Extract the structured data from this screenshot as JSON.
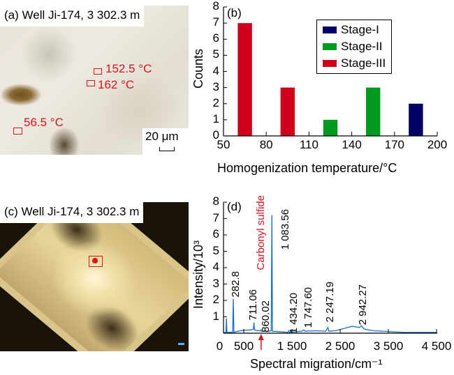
{
  "panel_a": {
    "label": "(a) Well Ji-174, 3 302.3 m",
    "temperatures": [
      "152.5 °C",
      "162 °C",
      "56.5 °C"
    ],
    "scale_bar": "20 μm"
  },
  "panel_c": {
    "label": "(c) Well Ji-174, 3 302.3 m"
  },
  "colors": {
    "stage1": "#000066",
    "stage2": "#009a1e",
    "stage3": "#d0001a",
    "spectrum": "#1a6fcc",
    "annotation": "#d8141e"
  },
  "chart_data": [
    {
      "panel": "(b)",
      "type": "bar",
      "xlabel": "Homogenization temperature/°C",
      "ylabel": "Counts",
      "xlim": [
        50,
        200
      ],
      "ylim": [
        0,
        8
      ],
      "xticks": [
        "50",
        "80",
        "110",
        "140",
        "170",
        "200"
      ],
      "yticks": [
        "0",
        "1",
        "2",
        "3",
        "4",
        "5",
        "6",
        "7",
        "8"
      ],
      "legend_position": "top-right",
      "legend": [
        "Stage-I",
        "Stage-II",
        "Stage-III"
      ],
      "bars": [
        {
          "from": 60,
          "to": 70,
          "value": 7,
          "series": "Stage-III"
        },
        {
          "from": 90,
          "to": 100,
          "value": 3,
          "series": "Stage-III"
        },
        {
          "from": 120,
          "to": 130,
          "value": 1,
          "series": "Stage-II"
        },
        {
          "from": 150,
          "to": 160,
          "value": 3,
          "series": "Stage-II"
        },
        {
          "from": 180,
          "to": 190,
          "value": 2,
          "series": "Stage-I"
        }
      ]
    },
    {
      "panel": "(d)",
      "type": "line",
      "xlabel": "Spectral migration/cm⁻¹",
      "ylabel": "Intensity/10³",
      "xlim": [
        0,
        4500
      ],
      "ylim": [
        0,
        8
      ],
      "xticks": [
        "0",
        "500",
        "1 500",
        "2 500",
        "3 500",
        "4 500"
      ],
      "xtick_values": [
        0,
        500,
        1500,
        2500,
        3500,
        4500
      ],
      "yticks": [
        "1",
        "2",
        "3",
        "4",
        "5",
        "6",
        "7",
        "8"
      ],
      "annotation": "Carbonyl sulfide",
      "annotation_x": 860,
      "peak_labels": [
        "282.8",
        "711.06",
        "860.02",
        "1 083.56",
        "1 434.20",
        "1 747.60",
        "2 247.19",
        "2 942.27"
      ],
      "points": [
        [
          80,
          0.02
        ],
        [
          130,
          0.05
        ],
        [
          140,
          0.9
        ],
        [
          150,
          0.05
        ],
        [
          270,
          0.05
        ],
        [
          282.8,
          2.1
        ],
        [
          295,
          0.05
        ],
        [
          350,
          0.1
        ],
        [
          500,
          0.18
        ],
        [
          650,
          0.2
        ],
        [
          700,
          0.25
        ],
        [
          711,
          0.65
        ],
        [
          722,
          0.2
        ],
        [
          800,
          0.15
        ],
        [
          850,
          0.15
        ],
        [
          860,
          0.2
        ],
        [
          870,
          0.12
        ],
        [
          1000,
          0.12
        ],
        [
          1070,
          0.15
        ],
        [
          1083.56,
          7.2
        ],
        [
          1095,
          0.12
        ],
        [
          1200,
          0.1
        ],
        [
          1420,
          0.05
        ],
        [
          1434,
          0.15
        ],
        [
          1450,
          0.05
        ],
        [
          1700,
          0.12
        ],
        [
          1747.6,
          0.2
        ],
        [
          1770,
          0.12
        ],
        [
          2000,
          0.15
        ],
        [
          2200,
          0.12
        ],
        [
          2247,
          0.35
        ],
        [
          2265,
          0.12
        ],
        [
          2400,
          0.15
        ],
        [
          2600,
          0.3
        ],
        [
          2750,
          0.42
        ],
        [
          2900,
          0.35
        ],
        [
          2942,
          0.45
        ],
        [
          3000,
          0.25
        ],
        [
          3200,
          0.15
        ],
        [
          3500,
          0.1
        ],
        [
          3800,
          0.05
        ],
        [
          4200,
          0.05
        ],
        [
          4500,
          0.05
        ]
      ]
    }
  ]
}
